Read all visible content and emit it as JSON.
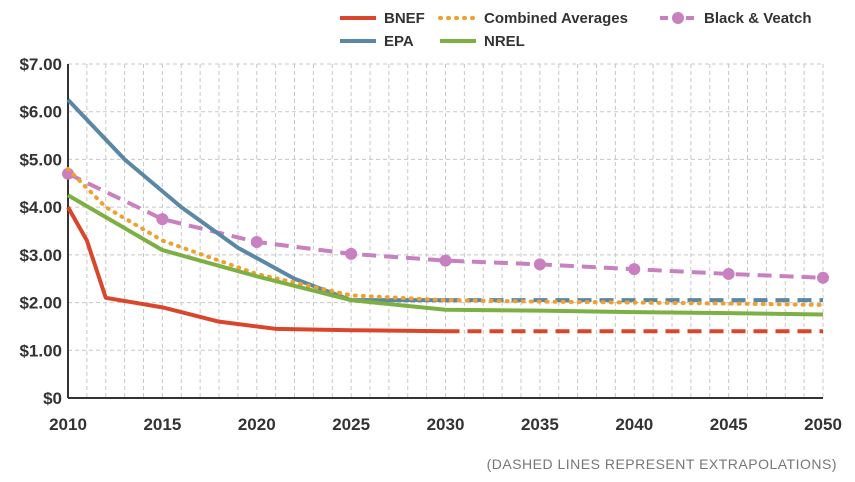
{
  "note": "(DASHED LINES REPRESENT EXTRAPOLATIONS)",
  "chart_data": {
    "type": "line",
    "x_ticks": [
      2010,
      2015,
      2020,
      2025,
      2030,
      2035,
      2040,
      2045,
      2050
    ],
    "xlim": [
      2010,
      2050
    ],
    "ylim": [
      0,
      7
    ],
    "y_ticks": [
      0,
      1,
      2,
      3,
      4,
      5,
      6,
      7
    ],
    "y_tick_labels": [
      "$0",
      "$1.00",
      "$2.00",
      "$3.00",
      "$4.00",
      "$5.00",
      "$6.00",
      "$7.00"
    ],
    "grid": true,
    "legend_position": "top-right",
    "series": [
      {
        "name": "BNEF",
        "color": "#d9462b",
        "style": "solid",
        "x": [
          2010,
          2011,
          2012,
          2015,
          2018,
          2021,
          2025,
          2030
        ],
        "values": [
          4.0,
          3.3,
          2.1,
          1.9,
          1.6,
          1.45,
          1.42,
          1.4
        ]
      },
      {
        "name": "BNEF extrapolation",
        "color": "#d9462b",
        "style": "dashed",
        "legend": false,
        "x": [
          2030,
          2035,
          2040,
          2045,
          2050
        ],
        "values": [
          1.4,
          1.4,
          1.4,
          1.4,
          1.4
        ]
      },
      {
        "name": "EPA",
        "color": "#5a87a6",
        "style": "solid",
        "x": [
          2010,
          2013,
          2016,
          2019,
          2022,
          2025,
          2030
        ],
        "values": [
          6.25,
          5.0,
          4.0,
          3.15,
          2.5,
          2.05,
          2.05
        ]
      },
      {
        "name": "EPA extrapolation",
        "color": "#5a87a6",
        "style": "dashed",
        "legend": false,
        "x": [
          2030,
          2035,
          2040,
          2045,
          2050
        ],
        "values": [
          2.05,
          2.05,
          2.05,
          2.05,
          2.05
        ]
      },
      {
        "name": "Combined Averages",
        "color": "#f0a030",
        "style": "dotted",
        "x": [
          2010,
          2012,
          2015,
          2020,
          2025,
          2030,
          2035,
          2040,
          2045,
          2050
        ],
        "values": [
          4.8,
          4.0,
          3.3,
          2.6,
          2.15,
          2.05,
          2.02,
          2.0,
          1.98,
          1.95
        ]
      },
      {
        "name": "NREL",
        "color": "#7db043",
        "style": "solid",
        "x": [
          2010,
          2015,
          2020,
          2025,
          2030,
          2035,
          2040,
          2045,
          2050
        ],
        "values": [
          4.25,
          3.1,
          2.55,
          2.05,
          1.85,
          1.83,
          1.8,
          1.78,
          1.75
        ]
      },
      {
        "name": "Black & Veatch",
        "color": "#c880c0",
        "style": "dashed",
        "markers": true,
        "x": [
          2010,
          2015,
          2020,
          2025,
          2030,
          2035,
          2040,
          2045,
          2050
        ],
        "values": [
          4.7,
          3.75,
          3.27,
          3.02,
          2.88,
          2.8,
          2.7,
          2.6,
          2.52
        ]
      }
    ]
  }
}
